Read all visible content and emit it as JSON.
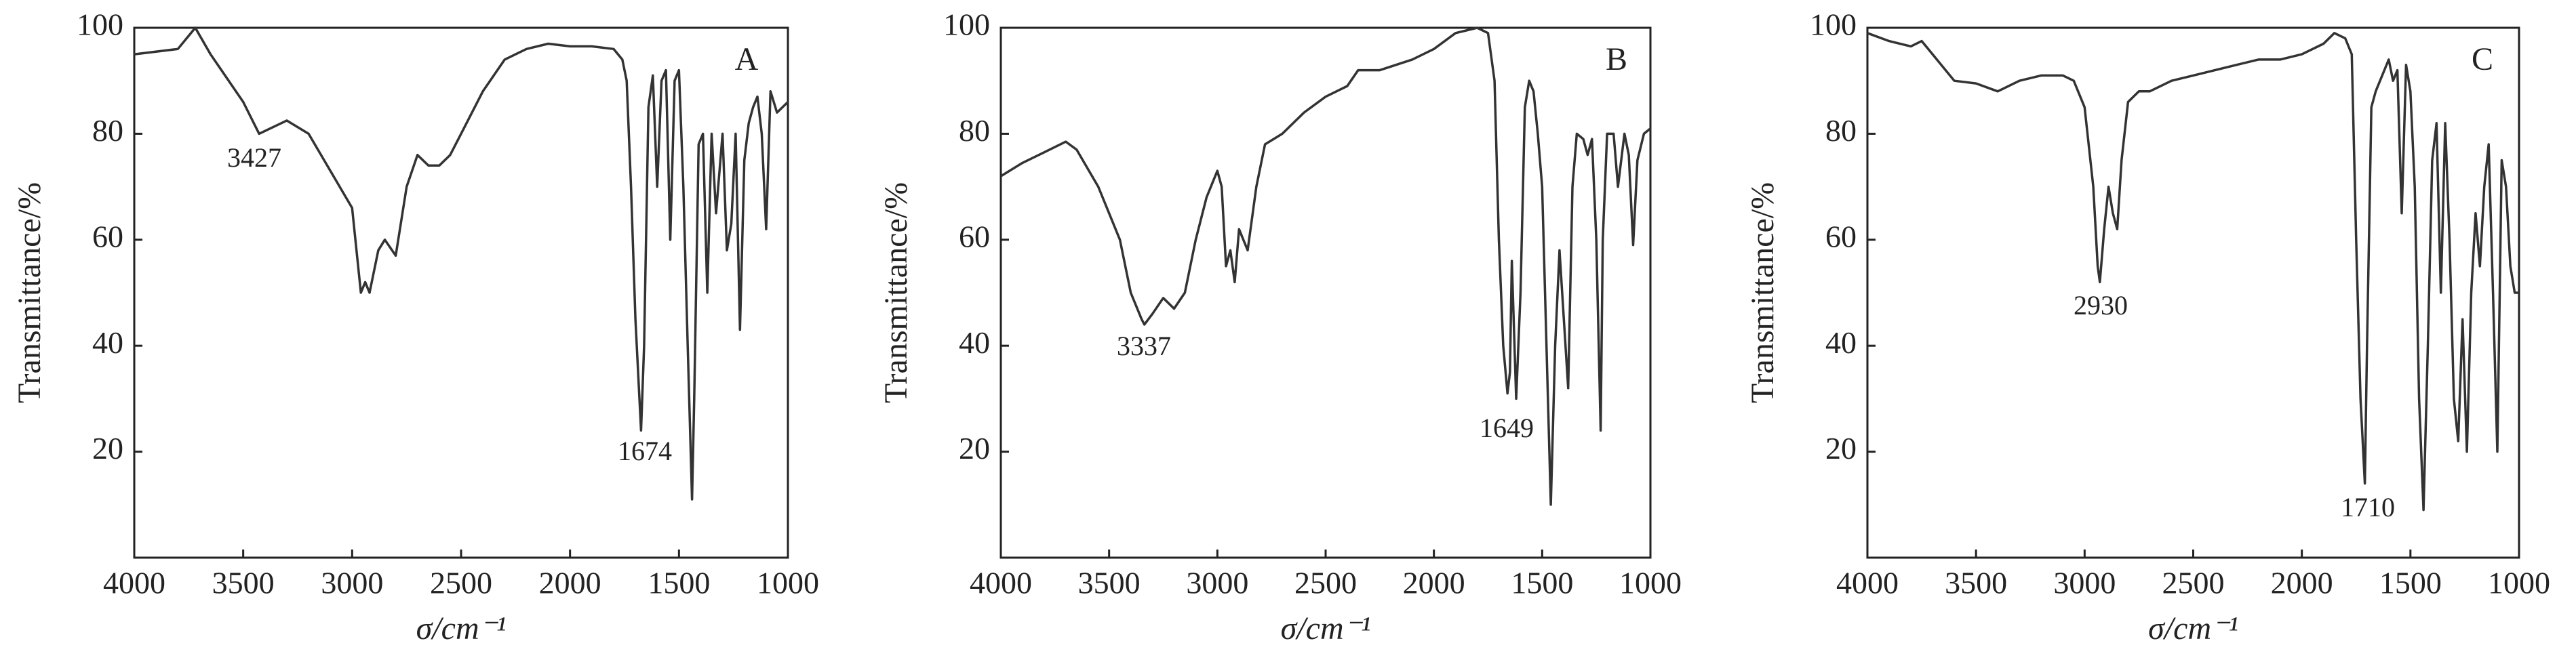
{
  "chart_data": [
    {
      "type": "line",
      "label": "A",
      "color": "#333333",
      "x": [
        4000,
        3800,
        3720,
        3650,
        3500,
        3427,
        3300,
        3200,
        3100,
        3000,
        2960,
        2940,
        2920,
        2880,
        2850,
        2800,
        2750,
        2700,
        2650,
        2600,
        2550,
        2500,
        2400,
        2300,
        2200,
        2100,
        2000,
        1900,
        1800,
        1760,
        1740,
        1720,
        1700,
        1674,
        1660,
        1640,
        1620,
        1600,
        1580,
        1560,
        1540,
        1520,
        1500,
        1480,
        1460,
        1440,
        1430,
        1410,
        1390,
        1370,
        1350,
        1330,
        1300,
        1280,
        1260,
        1240,
        1220,
        1200,
        1180,
        1160,
        1140,
        1120,
        1100,
        1080,
        1050,
        1000
      ],
      "values": [
        95,
        96,
        100,
        95,
        86,
        80,
        82.5,
        80,
        73,
        66,
        50,
        52,
        50,
        58,
        60,
        57,
        70,
        76,
        74,
        74,
        76,
        80,
        88,
        94,
        96,
        97,
        96.5,
        96.5,
        96,
        94,
        90,
        70,
        45,
        24,
        40,
        85,
        91,
        70,
        90,
        92,
        60,
        90,
        92,
        70,
        40,
        11,
        30,
        78,
        80,
        50,
        80,
        65,
        80,
        58,
        63,
        80,
        43,
        75,
        82,
        85,
        87,
        80,
        62,
        88,
        84,
        86
      ],
      "xlim": [
        4000,
        1000
      ],
      "ylim": [
        0,
        100
      ],
      "xticks": [
        4000,
        3500,
        3000,
        2500,
        2000,
        1500,
        1000
      ],
      "yticks": [
        20,
        40,
        60,
        80,
        100
      ],
      "xlabel": "σ/cm⁻¹",
      "ylabel": "Transmittance/%",
      "annotations": [
        "3427",
        "1674"
      ]
    },
    {
      "type": "line",
      "label": "B",
      "color": "#333333",
      "x": [
        4000,
        3900,
        3800,
        3700,
        3650,
        3550,
        3450,
        3400,
        3350,
        3337,
        3300,
        3250,
        3200,
        3150,
        3100,
        3050,
        3000,
        2980,
        2960,
        2940,
        2920,
        2900,
        2860,
        2820,
        2780,
        2700,
        2600,
        2500,
        2400,
        2350,
        2250,
        2100,
        2000,
        1900,
        1800,
        1750,
        1720,
        1700,
        1680,
        1660,
        1649,
        1640,
        1620,
        1600,
        1580,
        1560,
        1540,
        1520,
        1500,
        1480,
        1460,
        1440,
        1420,
        1400,
        1380,
        1360,
        1340,
        1310,
        1290,
        1270,
        1250,
        1230,
        1220,
        1200,
        1170,
        1150,
        1120,
        1100,
        1080,
        1060,
        1030,
        1000
      ],
      "values": [
        72,
        74.5,
        76.5,
        78.5,
        77,
        70,
        60,
        50,
        45,
        44,
        46,
        49,
        47,
        50,
        60,
        68,
        73,
        70,
        55,
        58,
        52,
        62,
        58,
        70,
        78,
        80,
        84,
        87,
        89,
        92,
        92,
        94,
        96,
        99,
        100,
        99,
        90,
        60,
        40,
        31,
        35,
        56,
        30,
        50,
        85,
        90,
        88,
        80,
        70,
        40,
        10,
        40,
        58,
        45,
        32,
        70,
        80,
        79,
        76,
        79,
        60,
        24,
        60,
        80,
        80,
        70,
        80,
        76,
        59,
        75,
        80,
        81
      ],
      "xlim": [
        4000,
        1000
      ],
      "ylim": [
        0,
        100
      ],
      "xticks": [
        4000,
        3500,
        3000,
        2500,
        2000,
        1500,
        1000
      ],
      "yticks": [
        20,
        40,
        60,
        80,
        100
      ],
      "xlabel": "σ/cm⁻¹",
      "ylabel": "Transmittance/%",
      "annotations": [
        "3337",
        "1649"
      ]
    },
    {
      "type": "line",
      "label": "C",
      "color": "#333333",
      "x": [
        4000,
        3900,
        3800,
        3750,
        3700,
        3600,
        3500,
        3400,
        3300,
        3200,
        3100,
        3050,
        3000,
        2960,
        2940,
        2930,
        2910,
        2890,
        2870,
        2850,
        2830,
        2800,
        2750,
        2700,
        2600,
        2500,
        2400,
        2300,
        2200,
        2100,
        2000,
        1900,
        1850,
        1800,
        1770,
        1750,
        1730,
        1710,
        1700,
        1680,
        1660,
        1640,
        1600,
        1580,
        1560,
        1540,
        1520,
        1500,
        1480,
        1460,
        1440,
        1420,
        1400,
        1380,
        1360,
        1340,
        1320,
        1300,
        1280,
        1260,
        1240,
        1220,
        1200,
        1180,
        1160,
        1140,
        1120,
        1100,
        1080,
        1060,
        1040,
        1020,
        1000
      ],
      "values": [
        99,
        97.5,
        96.5,
        97.5,
        95,
        90,
        89.5,
        88,
        90,
        91,
        91,
        90,
        85,
        70,
        55,
        52,
        62,
        70,
        65,
        62,
        75,
        86,
        88,
        88,
        90,
        91,
        92,
        93,
        94,
        94,
        95,
        97,
        99,
        98,
        95,
        60,
        30,
        14,
        40,
        85,
        88,
        90,
        94,
        90,
        92,
        65,
        93,
        88,
        70,
        30,
        9,
        40,
        75,
        82,
        50,
        82,
        60,
        30,
        22,
        45,
        20,
        50,
        65,
        55,
        70,
        78,
        50,
        20,
        75,
        70,
        55,
        50,
        50
      ],
      "xlim": [
        4000,
        1000
      ],
      "ylim": [
        0,
        100
      ],
      "xticks": [
        4000,
        3500,
        3000,
        2500,
        2000,
        1500,
        1000
      ],
      "yticks": [
        20,
        40,
        60,
        80,
        100
      ],
      "xlabel": "σ/cm⁻¹",
      "ylabel": "Transmittance/%",
      "annotations": [
        "2930",
        "1710"
      ]
    }
  ]
}
